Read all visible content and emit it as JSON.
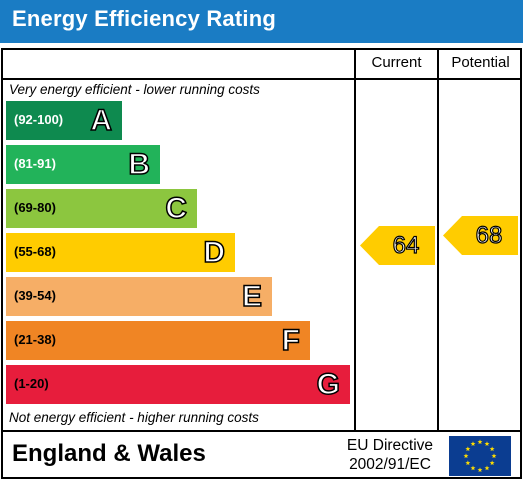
{
  "header": {
    "title": "Energy Efficiency Rating"
  },
  "columns": {
    "current": "Current",
    "potential": "Potential"
  },
  "notes": {
    "top": "Very energy efficient - lower running costs",
    "bottom": "Not energy efficient - higher running costs"
  },
  "bands": [
    {
      "range": "(92-100)",
      "letter": "A",
      "color": "#0e8a4f"
    },
    {
      "range": "(81-91)",
      "letter": "B",
      "color": "#22b35a"
    },
    {
      "range": "(69-80)",
      "letter": "C",
      "color": "#8cc63f"
    },
    {
      "range": "(55-68)",
      "letter": "D",
      "color": "#ffcc00"
    },
    {
      "range": "(39-54)",
      "letter": "E",
      "color": "#f6ae66"
    },
    {
      "range": "(21-38)",
      "letter": "F",
      "color": "#f08524"
    },
    {
      "range": "(1-20)",
      "letter": "G",
      "color": "#e71d3c"
    }
  ],
  "ratings": {
    "current": {
      "value": "64",
      "band": "D",
      "color": "#ffcc00"
    },
    "potential": {
      "value": "68",
      "band": "D",
      "color": "#ffcc00"
    }
  },
  "footer": {
    "country": "England & Wales",
    "directive_line1": "EU Directive",
    "directive_line2": "2002/91/EC",
    "flag_icon": "eu-flag-icon"
  },
  "colors": {
    "title_bar": "#1a7cc4",
    "eu_blue": "#0b3d91",
    "eu_star": "#ffdd00"
  }
}
